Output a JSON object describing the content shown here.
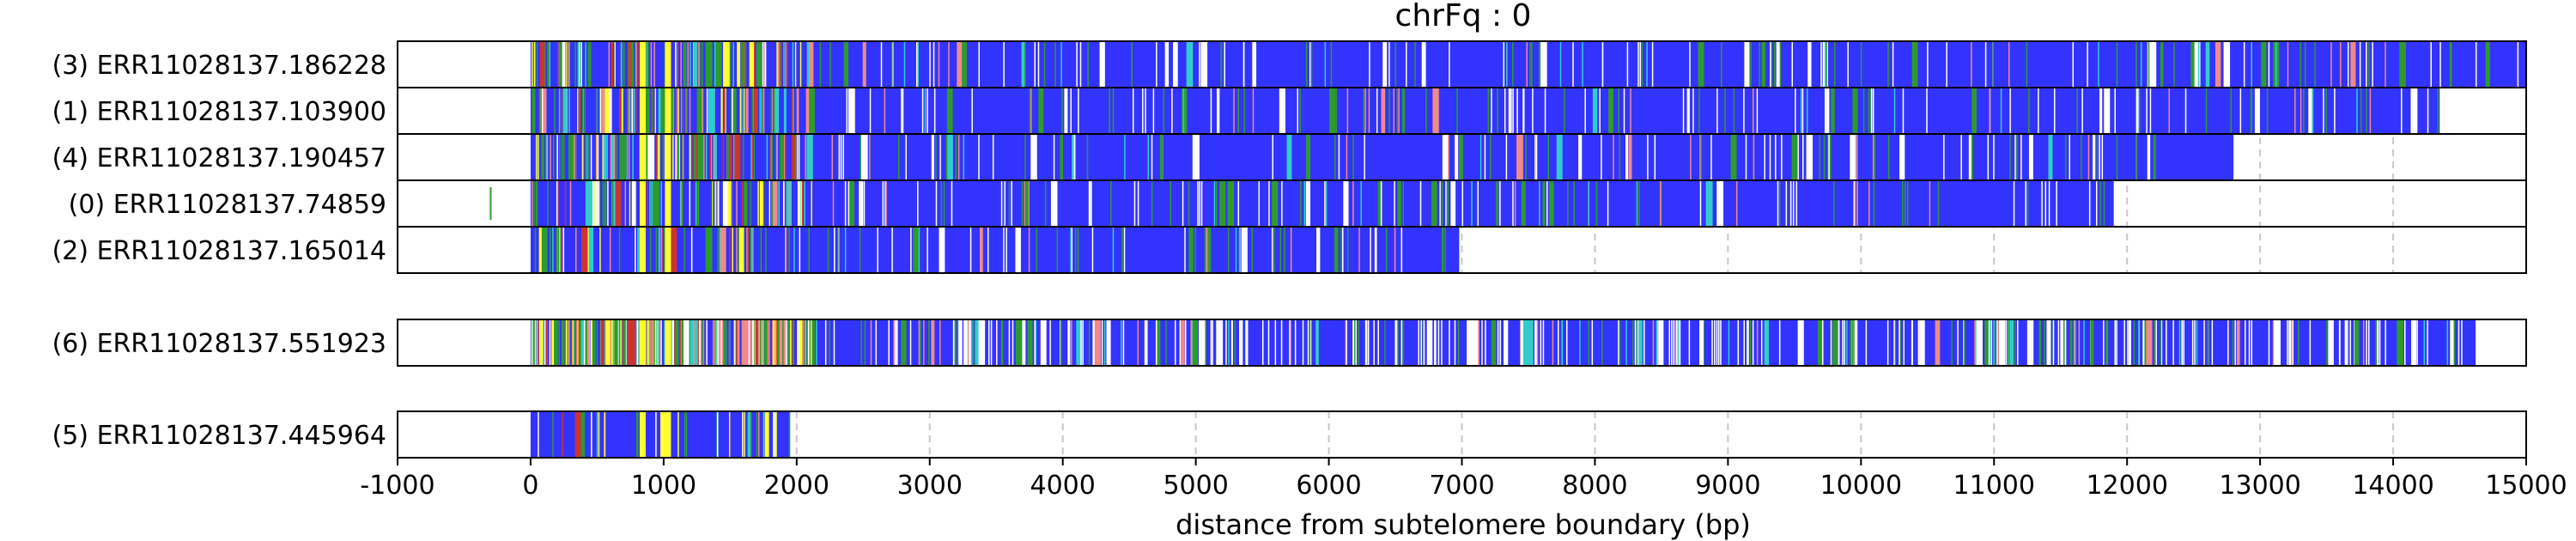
{
  "chart_data": {
    "type": "heatmap",
    "title": "chrFq : 0",
    "xlabel": "distance from subtelomere boundary (bp)",
    "ylabel": "",
    "xlim": [
      -1000,
      15000
    ],
    "xticks": [
      "-1000",
      "0",
      "1000",
      "2000",
      "3000",
      "4000",
      "5000",
      "6000",
      "7000",
      "8000",
      "9000",
      "10000",
      "11000",
      "12000",
      "13000",
      "14000",
      "15000"
    ],
    "grid": "vertical dashed gridlines at each 1000 bp",
    "groups": [
      {
        "reads": [
          {
            "label": "(3) ERR11028137.186228",
            "start": 0,
            "end": 15000
          },
          {
            "label": "(1) ERR11028137.103900",
            "start": 0,
            "end": 14350
          },
          {
            "label": "(4) ERR11028137.190457",
            "start": 0,
            "end": 12800
          },
          {
            "label": "(0) ERR11028137.74859",
            "start": 0,
            "end": 11900
          },
          {
            "label": "(2) ERR11028137.165014",
            "start": 0,
            "end": 6980
          }
        ]
      },
      {
        "reads": [
          {
            "label": "(6) ERR11028137.551923",
            "start": 0,
            "end": 14620
          }
        ]
      },
      {
        "reads": [
          {
            "label": "(5) ERR11028137.445964",
            "start": 0,
            "end": 1950
          }
        ]
      }
    ],
    "colors": {
      "base": "#3333ff",
      "green": "#2e9a2e",
      "yellow": "#ffff33",
      "pink": "#f08a8a",
      "red": "#cc3333",
      "cyan": "#33cccc",
      "white": "#ffffff",
      "grid": "#c8c8c8"
    }
  }
}
